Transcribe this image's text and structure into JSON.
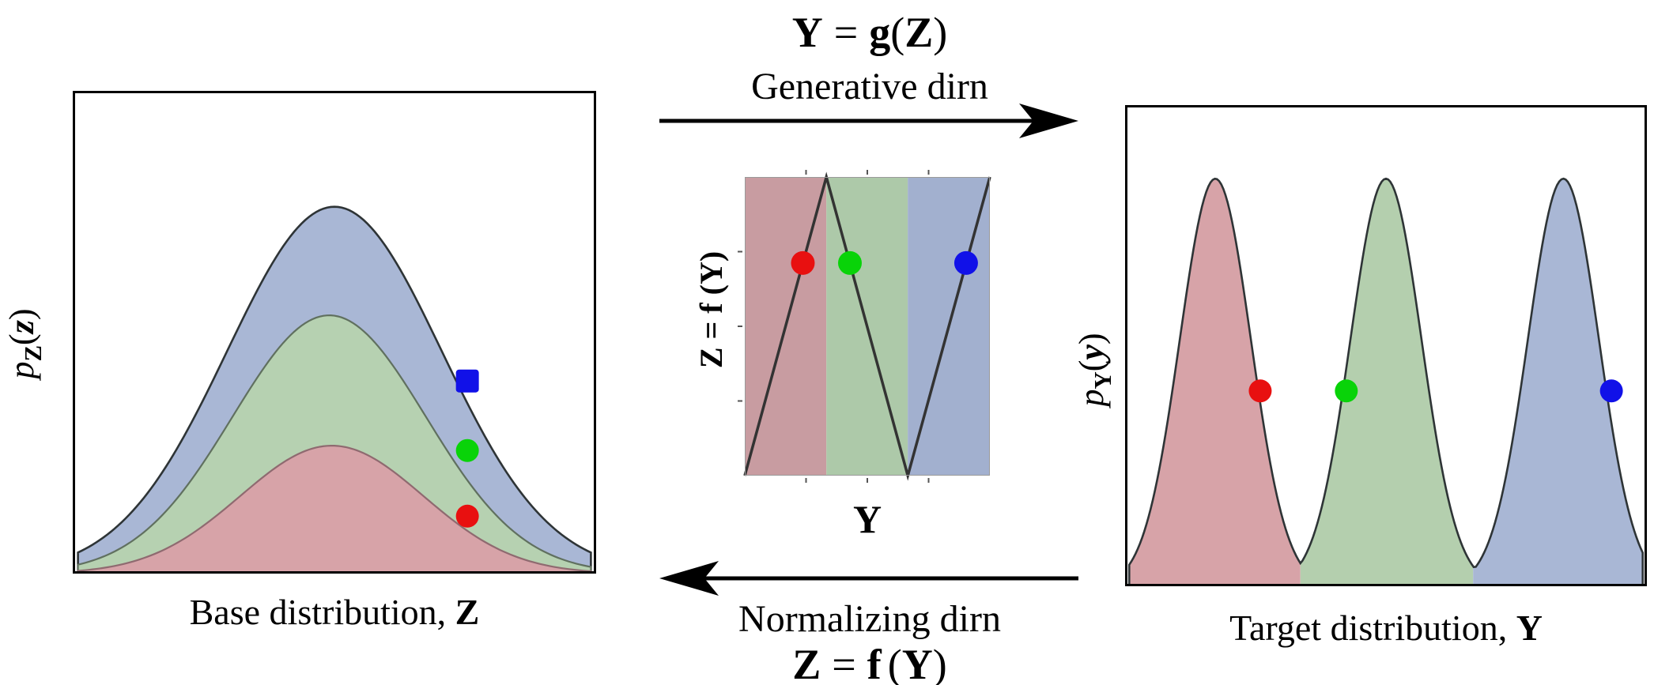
{
  "figure": {
    "top_flow": {
      "equation_parts": {
        "lhs": "Y",
        "eq": "=",
        "func": "g",
        "open": "(",
        "arg": "Z",
        "close": ")"
      },
      "caption": "Generative dirn"
    },
    "bottom_flow": {
      "caption": "Normalizing dirn",
      "equation_parts": {
        "lhs": "Z",
        "eq": "=",
        "func": "f",
        "open": "(",
        "arg": "Y",
        "close": ")"
      }
    },
    "base_plot": {
      "ylabel_parts": {
        "base": "p",
        "sub": "Z",
        "open": "(",
        "arg": "z",
        "close": ")"
      },
      "caption_text": "Base distribution,",
      "caption_var": "Z"
    },
    "transform_plot": {
      "ylabel": "Z = f (Y)",
      "xlabel": "Y"
    },
    "target_plot": {
      "ylabel_parts": {
        "base": "p",
        "sub": "Y",
        "open": "(",
        "arg": "y",
        "close": ")"
      },
      "caption_text": "Target distribution,",
      "caption_var": "Y"
    }
  },
  "chart_data": [
    {
      "id": "base",
      "type": "area",
      "title": "Base distribution, Z",
      "ylabel": "p_Z(z)",
      "xlabel": "",
      "x_range": [
        0,
        1
      ],
      "y_range": [
        0,
        1
      ],
      "inset": 0.01,
      "series": [
        {
          "name": "outer-gaussian-blue",
          "shape": "gaussian",
          "center": 0.5,
          "sigma": 0.205,
          "peak": 0.76,
          "fill": "#a9b7d5",
          "stroke": "#2e3436",
          "stroke_width": 2.6
        },
        {
          "name": "middle-gaussian-green",
          "shape": "gaussian",
          "center": 0.49,
          "sigma": 0.185,
          "peak": 0.535,
          "fill": "#b6d1b1",
          "stroke": "#60705f",
          "stroke_width": 2.2
        },
        {
          "name": "inner-gaussian-red",
          "shape": "gaussian",
          "center": 0.495,
          "sigma": 0.175,
          "peak": 0.265,
          "fill": "#d7a3a8",
          "stroke": "#8f6a70",
          "stroke_width": 2.2
        }
      ],
      "samples": [
        {
          "name": "sample-blue",
          "color": "#1111e8",
          "x": 0.754,
          "y": 0.399,
          "marker": "square"
        },
        {
          "name": "sample-green",
          "color": "#09d309",
          "x": 0.754,
          "y": 0.255,
          "marker": "circle"
        },
        {
          "name": "sample-red",
          "color": "#e81010",
          "x": 0.754,
          "y": 0.119,
          "marker": "circle"
        }
      ]
    },
    {
      "id": "transform",
      "type": "function",
      "xlabel": "Y",
      "ylabel": "Z = f(Y)",
      "bands": [
        {
          "name": "red-band",
          "x0": 0.0,
          "x1": 0.333,
          "fill": "#c89ca1"
        },
        {
          "name": "green-band",
          "x0": 0.333,
          "x1": 0.665,
          "fill": "#adc9a9"
        },
        {
          "name": "blue-band",
          "x0": 0.665,
          "x1": 1.0,
          "fill": "#a2b0cf"
        }
      ],
      "line": {
        "points": [
          [
            0,
            0
          ],
          [
            0.333,
            1
          ],
          [
            0.665,
            0
          ],
          [
            1,
            1
          ]
        ],
        "color": "#333333",
        "width": 3.5
      },
      "ticks": {
        "left": [
          0.25,
          0.5,
          0.75
        ],
        "top": [
          0.25,
          0.5,
          0.75
        ],
        "bottom": [
          0.25,
          0.5,
          0.75
        ]
      },
      "samples": [
        {
          "name": "sample-red",
          "color": "#e81010",
          "x": 0.237,
          "y": 0.712,
          "marker": "circle"
        },
        {
          "name": "sample-green",
          "color": "#09d309",
          "x": 0.429,
          "y": 0.712,
          "marker": "circle"
        },
        {
          "name": "sample-blue",
          "color": "#1111e8",
          "x": 0.903,
          "y": 0.712,
          "marker": "circle"
        }
      ]
    },
    {
      "id": "target",
      "type": "area-multimodal",
      "title": "Target distribution, Y",
      "ylabel": "p_Y(y)",
      "xlabel": "",
      "inset": 0.008,
      "stroke": "#2e3436",
      "stroke_width": 2.6,
      "modes": [
        {
          "name": "red-mode",
          "center": 0.173,
          "sigma": 0.068,
          "peak": 0.847
        },
        {
          "name": "green-mode",
          "center": 0.5,
          "sigma": 0.068,
          "peak": 0.847
        },
        {
          "name": "blue-mode",
          "center": 0.84,
          "sigma": 0.068,
          "peak": 0.847
        }
      ],
      "boundaries": [
        0.336,
        0.667
      ],
      "fills": [
        "#d7a3a8",
        "#b4cfae",
        "#a9b7d5"
      ],
      "samples": [
        {
          "name": "sample-red",
          "color": "#e81010",
          "x": 0.259,
          "y": 0.406,
          "marker": "circle"
        },
        {
          "name": "sample-green",
          "color": "#09d309",
          "x": 0.424,
          "y": 0.406,
          "marker": "circle"
        },
        {
          "name": "sample-blue",
          "color": "#1111e8",
          "x": 0.932,
          "y": 0.406,
          "marker": "circle"
        }
      ]
    }
  ]
}
